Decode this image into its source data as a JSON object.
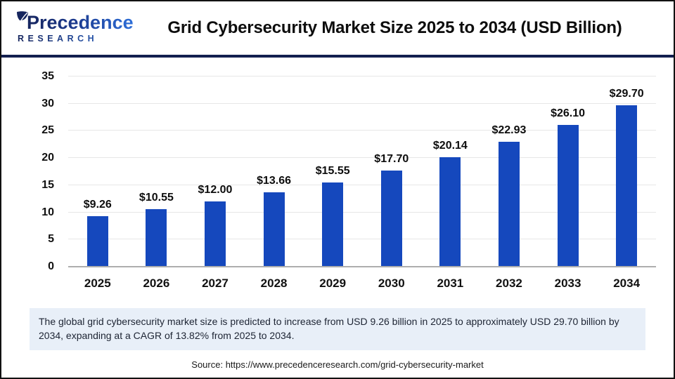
{
  "header": {
    "logo": {
      "name": "Precedence",
      "subtitle": "RESEARCH"
    },
    "title": "Grid Cybersecurity Market Size 2025 to 2034 (USD Billion)"
  },
  "chart_data": {
    "type": "bar",
    "title": "Grid Cybersecurity Market Size 2025 to 2034 (USD Billion)",
    "categories": [
      "2025",
      "2026",
      "2027",
      "2028",
      "2029",
      "2030",
      "2031",
      "2032",
      "2033",
      "2034"
    ],
    "values": [
      9.26,
      10.55,
      12.0,
      13.66,
      15.55,
      17.7,
      20.14,
      22.93,
      26.1,
      29.7
    ],
    "value_labels": [
      "$9.26",
      "$10.55",
      "$12.00",
      "$13.66",
      "$15.55",
      "$17.70",
      "$20.14",
      "$22.93",
      "$26.10",
      "$29.70"
    ],
    "xlabel": "",
    "ylabel": "",
    "ylim": [
      0,
      35
    ],
    "yticks": [
      0,
      5,
      10,
      15,
      20,
      25,
      30,
      35
    ],
    "grid": true,
    "legend": "none",
    "bar_color": "#1548bd"
  },
  "footer": {
    "description": "The global grid cybersecurity market size is predicted to increase from USD 9.26 billion in 2025 to approximately USD 29.70 billion by 2034, expanding at a CAGR of 13.82% from 2025 to 2034.",
    "source": "Source: https://www.precedenceresearch.com/grid-cybersecurity-market"
  },
  "colors": {
    "bar": "#1548bd",
    "header_rule": "#131f4f",
    "logo_dark": "#16255e",
    "logo_light": "#2e6fd9",
    "description_background": "#e8eff8",
    "gridline": "#e7e7e7",
    "axis_line": "#aeaeae"
  }
}
